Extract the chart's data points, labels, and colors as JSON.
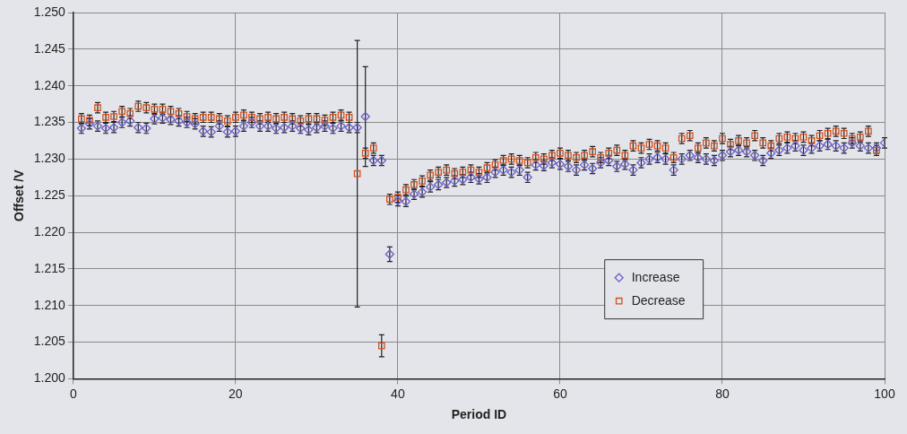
{
  "chart_data": {
    "type": "scatter",
    "xlabel": "Period ID",
    "ylabel": "Offset /V",
    "x": [
      1,
      2,
      3,
      4,
      5,
      6,
      7,
      8,
      9,
      10,
      11,
      12,
      13,
      14,
      15,
      16,
      17,
      18,
      19,
      20,
      21,
      22,
      23,
      24,
      25,
      26,
      27,
      28,
      29,
      30,
      31,
      32,
      33,
      34,
      35,
      36,
      37,
      38,
      39,
      40,
      41,
      42,
      43,
      44,
      45,
      46,
      47,
      48,
      49,
      50,
      51,
      52,
      53,
      54,
      55,
      56,
      57,
      58,
      59,
      60,
      61,
      62,
      63,
      64,
      65,
      66,
      67,
      68,
      69,
      70,
      71,
      72,
      73,
      74,
      75,
      76,
      77,
      78,
      79,
      80,
      81,
      82,
      83,
      84,
      85,
      86,
      87,
      88,
      89,
      90,
      91,
      92,
      93,
      94,
      95,
      96,
      97,
      98,
      99,
      100
    ],
    "xlim": [
      0,
      100
    ],
    "xticks": [
      0,
      20,
      40,
      60,
      80,
      100
    ],
    "ylim": [
      1.2,
      1.25
    ],
    "yticks": [
      {
        "value": 1.2,
        "label": "1.200"
      },
      {
        "value": 1.205,
        "label": "1.205"
      },
      {
        "value": 1.21,
        "label": "1.210"
      },
      {
        "value": 1.215,
        "label": "1.215"
      },
      {
        "value": 1.22,
        "label": "1.220"
      },
      {
        "value": 1.225,
        "label": "1.225"
      },
      {
        "value": 1.23,
        "label": "1.230"
      },
      {
        "value": 1.235,
        "label": "1.235"
      },
      {
        "value": 1.24,
        "label": "1.240"
      },
      {
        "value": 1.245,
        "label": "1.245"
      },
      {
        "value": 1.25,
        "label": "1.250"
      }
    ],
    "grid": true,
    "legend": "bottom right",
    "series": [
      {
        "name": "Increase",
        "color": "#6a5fc8",
        "marker": "diamond",
        "values": [
          1.2342,
          1.2348,
          1.2345,
          1.2342,
          1.2343,
          1.235,
          1.2352,
          1.2343,
          1.2342,
          1.2355,
          1.2356,
          1.2354,
          1.2352,
          1.235,
          1.2348,
          1.2338,
          1.2337,
          1.2345,
          1.2337,
          1.2338,
          1.2345,
          1.235,
          1.2345,
          1.2345,
          1.2342,
          1.2343,
          1.2345,
          1.2342,
          1.234,
          1.2343,
          1.2345,
          1.2342,
          1.2345,
          1.2343,
          1.2343,
          1.2358,
          1.2298,
          1.2298,
          1.217,
          1.2243,
          1.2242,
          1.2252,
          1.2255,
          1.2262,
          1.2265,
          1.2268,
          1.227,
          1.2272,
          1.2275,
          1.2273,
          1.2275,
          1.2282,
          1.2285,
          1.2282,
          1.2285,
          1.2275,
          1.2292,
          1.2291,
          1.2295,
          1.2293,
          1.229,
          1.2285,
          1.2292,
          1.2287,
          1.2295,
          1.2298,
          1.229,
          1.2293,
          1.2285,
          1.2295,
          1.23,
          1.2302,
          1.23,
          1.2285,
          1.23,
          1.2305,
          1.2302,
          1.23,
          1.2298,
          1.2305,
          1.231,
          1.2312,
          1.231,
          1.2305,
          1.2298,
          1.2308,
          1.2312,
          1.2315,
          1.2318,
          1.2312,
          1.2315,
          1.2318,
          1.232,
          1.2318,
          1.2315,
          1.2322,
          1.2318,
          1.2315,
          1.2315,
          1.2322
        ],
        "errors": [
          0.0007,
          0.0007,
          0.0007,
          0.0007,
          0.0007,
          0.0007,
          0.0007,
          0.0007,
          0.0007,
          0.0007,
          0.0007,
          0.0007,
          0.0007,
          0.0007,
          0.0007,
          0.0007,
          0.0007,
          0.0007,
          0.0007,
          0.0007,
          0.0007,
          0.0007,
          0.0007,
          0.0007,
          0.0007,
          0.0007,
          0.0007,
          0.0007,
          0.0007,
          0.0007,
          0.0007,
          0.0007,
          0.0007,
          0.0007,
          0.0007,
          0.0068,
          0.0007,
          0.0007,
          0.001,
          0.0007,
          0.0007,
          0.0007,
          0.0007,
          0.0007,
          0.0007,
          0.0007,
          0.0007,
          0.0007,
          0.0007,
          0.0007,
          0.0007,
          0.0007,
          0.0007,
          0.0007,
          0.0007,
          0.0007,
          0.0007,
          0.0007,
          0.0007,
          0.0007,
          0.0007,
          0.0007,
          0.0007,
          0.0007,
          0.0007,
          0.0007,
          0.0007,
          0.0007,
          0.0007,
          0.0007,
          0.0007,
          0.0007,
          0.0007,
          0.0007,
          0.0007,
          0.0007,
          0.0007,
          0.0007,
          0.0007,
          0.0007,
          0.0007,
          0.0007,
          0.0007,
          0.0007,
          0.0007,
          0.0007,
          0.0007,
          0.0007,
          0.0007,
          0.0007,
          0.0007,
          0.0007,
          0.0007,
          0.0007,
          0.0007,
          0.0007,
          0.0007,
          0.0007,
          0.0007,
          0.0007
        ]
      },
      {
        "name": "Decrease",
        "color": "#d2501e",
        "marker": "square",
        "values": [
          1.2355,
          1.2353,
          1.237,
          1.2357,
          1.2358,
          1.2365,
          1.2362,
          1.2372,
          1.237,
          1.2368,
          1.2368,
          1.2365,
          1.2362,
          1.2358,
          1.2355,
          1.2357,
          1.2357,
          1.2355,
          1.2352,
          1.2357,
          1.236,
          1.2357,
          1.2355,
          1.2357,
          1.2355,
          1.2357,
          1.2355,
          1.2352,
          1.2355,
          1.2355,
          1.2353,
          1.2357,
          1.236,
          1.2357,
          1.228,
          1.2308,
          1.2315,
          1.2045,
          1.2245,
          1.2248,
          1.2258,
          1.2265,
          1.227,
          1.2278,
          1.2282,
          1.2285,
          1.228,
          1.2282,
          1.2285,
          1.2282,
          1.2288,
          1.2292,
          1.2298,
          1.23,
          1.2298,
          1.2295,
          1.2302,
          1.23,
          1.2305,
          1.2308,
          1.2305,
          1.2302,
          1.2305,
          1.231,
          1.2302,
          1.2308,
          1.2312,
          1.2305,
          1.2318,
          1.2315,
          1.232,
          1.2318,
          1.2315,
          1.2302,
          1.2328,
          1.2332,
          1.2315,
          1.2322,
          1.2318,
          1.2328,
          1.232,
          1.2325,
          1.2322,
          1.2332,
          1.2322,
          1.2318,
          1.2328,
          1.233,
          1.2328,
          1.233,
          1.2325,
          1.2332,
          1.2335,
          1.2338,
          1.2335,
          1.2328,
          1.233,
          1.2338,
          1.2312,
          null
        ],
        "errors": [
          0.0007,
          0.0007,
          0.0007,
          0.0007,
          0.0007,
          0.0007,
          0.0007,
          0.0007,
          0.0007,
          0.0007,
          0.0007,
          0.0007,
          0.0007,
          0.0007,
          0.0007,
          0.0007,
          0.0007,
          0.0007,
          0.0007,
          0.0007,
          0.0007,
          0.0007,
          0.0007,
          0.0007,
          0.0007,
          0.0007,
          0.0007,
          0.0007,
          0.0007,
          0.0007,
          0.0007,
          0.0007,
          0.0007,
          0.0007,
          0.0182,
          0.0007,
          0.0007,
          0.0015,
          0.0007,
          0.0007,
          0.0007,
          0.0007,
          0.0007,
          0.0007,
          0.0007,
          0.0007,
          0.0007,
          0.0007,
          0.0007,
          0.0007,
          0.0007,
          0.0007,
          0.0007,
          0.0007,
          0.0007,
          0.0007,
          0.0007,
          0.0007,
          0.0007,
          0.0007,
          0.0007,
          0.0007,
          0.0007,
          0.0007,
          0.0007,
          0.0007,
          0.0007,
          0.0007,
          0.0007,
          0.0007,
          0.0007,
          0.0007,
          0.0007,
          0.0007,
          0.0007,
          0.0007,
          0.0007,
          0.0007,
          0.0007,
          0.0007,
          0.0007,
          0.0007,
          0.0007,
          0.0007,
          0.0007,
          0.0007,
          0.0007,
          0.0007,
          0.0007,
          0.0007,
          0.0007,
          0.0007,
          0.0007,
          0.0007,
          0.0007,
          0.0007,
          0.0007,
          0.0007,
          0.0007,
          null
        ]
      }
    ]
  }
}
